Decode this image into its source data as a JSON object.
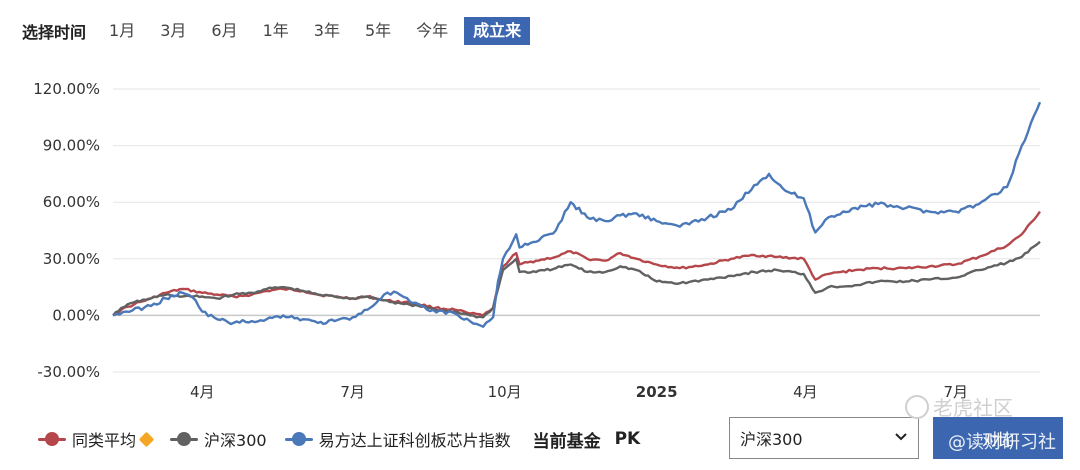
{
  "toolbar": {
    "label": "选择时间",
    "ranges": [
      "1月",
      "3月",
      "6月",
      "1年",
      "3年",
      "5年",
      "今年",
      "成立来"
    ],
    "active_index": 7
  },
  "chart_data": {
    "type": "line",
    "x_range": [
      "2024-02-07",
      "2025-08-21"
    ],
    "ylim": [
      -30,
      120
    ],
    "y_ticks": [
      -30,
      0,
      30,
      60,
      90,
      120
    ],
    "y_tick_labels": [
      "-30.00%",
      "0.00%",
      "30.00%",
      "60.00%",
      "90.00%",
      "120.00%"
    ],
    "x_ticks": [
      {
        "date": "2024-04-01",
        "label": "4月",
        "bold": false
      },
      {
        "date": "2024-07-01",
        "label": "7月",
        "bold": false
      },
      {
        "date": "2024-10-01",
        "label": "10月",
        "bold": false
      },
      {
        "date": "2025-01-01",
        "label": "2025",
        "bold": true
      },
      {
        "date": "2025-04-01",
        "label": "4月",
        "bold": false
      },
      {
        "date": "2025-07-01",
        "label": "7月",
        "bold": false
      }
    ],
    "grid": true,
    "legend_position": "bottom",
    "series": [
      {
        "name": "同类平均",
        "color": "#b5474b",
        "points": [
          [
            "2024-02-07",
            0
          ],
          [
            "2024-02-12",
            3
          ],
          [
            "2024-02-20",
            6
          ],
          [
            "2024-03-01",
            9
          ],
          [
            "2024-03-10",
            12
          ],
          [
            "2024-03-20",
            14
          ],
          [
            "2024-04-01",
            12
          ],
          [
            "2024-04-10",
            11
          ],
          [
            "2024-04-20",
            10
          ],
          [
            "2024-05-01",
            11
          ],
          [
            "2024-05-10",
            13
          ],
          [
            "2024-05-20",
            14
          ],
          [
            "2024-06-01",
            13
          ],
          [
            "2024-06-10",
            11
          ],
          [
            "2024-06-20",
            10
          ],
          [
            "2024-07-01",
            9
          ],
          [
            "2024-07-10",
            10
          ],
          [
            "2024-07-20",
            8
          ],
          [
            "2024-08-01",
            7
          ],
          [
            "2024-08-10",
            6
          ],
          [
            "2024-08-20",
            4
          ],
          [
            "2024-09-01",
            3
          ],
          [
            "2024-09-10",
            1
          ],
          [
            "2024-09-18",
            0
          ],
          [
            "2024-09-24",
            4
          ],
          [
            "2024-09-27",
            15
          ],
          [
            "2024-09-30",
            26
          ],
          [
            "2024-10-08",
            33
          ],
          [
            "2024-10-10",
            27
          ],
          [
            "2024-10-20",
            29
          ],
          [
            "2024-11-01",
            31
          ],
          [
            "2024-11-10",
            34
          ],
          [
            "2024-11-20",
            30
          ],
          [
            "2024-12-01",
            29
          ],
          [
            "2024-12-10",
            33
          ],
          [
            "2024-12-20",
            30
          ],
          [
            "2025-01-01",
            27
          ],
          [
            "2025-01-15",
            25
          ],
          [
            "2025-02-01",
            27
          ],
          [
            "2025-02-15",
            30
          ],
          [
            "2025-03-01",
            32
          ],
          [
            "2025-03-15",
            31
          ],
          [
            "2025-03-31",
            30
          ],
          [
            "2025-04-07",
            19
          ],
          [
            "2025-04-15",
            22
          ],
          [
            "2025-05-01",
            24
          ],
          [
            "2025-05-15",
            25
          ],
          [
            "2025-06-01",
            25
          ],
          [
            "2025-06-15",
            26
          ],
          [
            "2025-07-01",
            27
          ],
          [
            "2025-07-15",
            31
          ],
          [
            "2025-08-01",
            37
          ],
          [
            "2025-08-10",
            43
          ],
          [
            "2025-08-21",
            55
          ]
        ]
      },
      {
        "name": "沪深300",
        "color": "#616161",
        "points": [
          [
            "2024-02-07",
            0
          ],
          [
            "2024-02-12",
            4
          ],
          [
            "2024-02-20",
            7
          ],
          [
            "2024-03-01",
            9
          ],
          [
            "2024-03-10",
            11
          ],
          [
            "2024-03-20",
            10
          ],
          [
            "2024-04-01",
            10
          ],
          [
            "2024-04-10",
            9
          ],
          [
            "2024-04-20",
            11
          ],
          [
            "2024-05-01",
            12
          ],
          [
            "2024-05-10",
            14
          ],
          [
            "2024-05-20",
            15
          ],
          [
            "2024-06-01",
            13
          ],
          [
            "2024-06-10",
            11
          ],
          [
            "2024-06-20",
            10
          ],
          [
            "2024-07-01",
            9
          ],
          [
            "2024-07-10",
            10
          ],
          [
            "2024-07-20",
            8
          ],
          [
            "2024-08-01",
            6
          ],
          [
            "2024-08-10",
            5
          ],
          [
            "2024-08-20",
            3
          ],
          [
            "2024-09-01",
            2
          ],
          [
            "2024-09-10",
            0
          ],
          [
            "2024-09-18",
            -1
          ],
          [
            "2024-09-24",
            4
          ],
          [
            "2024-09-27",
            14
          ],
          [
            "2024-09-30",
            24
          ],
          [
            "2024-10-08",
            30
          ],
          [
            "2024-10-10",
            23
          ],
          [
            "2024-10-20",
            23
          ],
          [
            "2024-11-01",
            25
          ],
          [
            "2024-11-10",
            27
          ],
          [
            "2024-11-20",
            23
          ],
          [
            "2024-12-01",
            23
          ],
          [
            "2024-12-10",
            26
          ],
          [
            "2024-12-20",
            24
          ],
          [
            "2025-01-01",
            18
          ],
          [
            "2025-01-15",
            17
          ],
          [
            "2025-02-01",
            19
          ],
          [
            "2025-02-15",
            21
          ],
          [
            "2025-03-01",
            23
          ],
          [
            "2025-03-15",
            24
          ],
          [
            "2025-03-31",
            22
          ],
          [
            "2025-04-07",
            12
          ],
          [
            "2025-04-15",
            15
          ],
          [
            "2025-05-01",
            16
          ],
          [
            "2025-05-15",
            18
          ],
          [
            "2025-06-01",
            18
          ],
          [
            "2025-06-15",
            19
          ],
          [
            "2025-07-01",
            20
          ],
          [
            "2025-07-15",
            24
          ],
          [
            "2025-08-01",
            28
          ],
          [
            "2025-08-10",
            31
          ],
          [
            "2025-08-21",
            39
          ]
        ]
      },
      {
        "name": "易方达上证科创板芯片指数",
        "color": "#4a78b8",
        "points": [
          [
            "2024-02-07",
            0
          ],
          [
            "2024-02-15",
            2
          ],
          [
            "2024-03-01",
            5
          ],
          [
            "2024-03-10",
            9
          ],
          [
            "2024-03-20",
            12
          ],
          [
            "2024-03-28",
            8
          ],
          [
            "2024-04-01",
            2
          ],
          [
            "2024-04-10",
            -2
          ],
          [
            "2024-04-20",
            -4
          ],
          [
            "2024-05-01",
            -3
          ],
          [
            "2024-05-10",
            -2
          ],
          [
            "2024-05-20",
            0
          ],
          [
            "2024-06-01",
            -2
          ],
          [
            "2024-06-10",
            -4
          ],
          [
            "2024-06-20",
            -3
          ],
          [
            "2024-07-01",
            -1
          ],
          [
            "2024-07-10",
            3
          ],
          [
            "2024-07-20",
            11
          ],
          [
            "2024-07-28",
            12
          ],
          [
            "2024-08-05",
            7
          ],
          [
            "2024-08-15",
            3
          ],
          [
            "2024-09-01",
            1
          ],
          [
            "2024-09-10",
            -3
          ],
          [
            "2024-09-18",
            -6
          ],
          [
            "2024-09-24",
            -1
          ],
          [
            "2024-09-27",
            18
          ],
          [
            "2024-09-30",
            30
          ],
          [
            "2024-10-08",
            43
          ],
          [
            "2024-10-10",
            36
          ],
          [
            "2024-10-20",
            39
          ],
          [
            "2024-11-01",
            45
          ],
          [
            "2024-11-10",
            60
          ],
          [
            "2024-11-20",
            52
          ],
          [
            "2024-12-01",
            50
          ],
          [
            "2024-12-10",
            53
          ],
          [
            "2024-12-20",
            54
          ],
          [
            "2025-01-01",
            50
          ],
          [
            "2025-01-15",
            47
          ],
          [
            "2025-02-01",
            52
          ],
          [
            "2025-02-15",
            56
          ],
          [
            "2025-03-01",
            69
          ],
          [
            "2025-03-10",
            75
          ],
          [
            "2025-03-20",
            66
          ],
          [
            "2025-03-31",
            62
          ],
          [
            "2025-04-07",
            44
          ],
          [
            "2025-04-15",
            52
          ],
          [
            "2025-05-01",
            57
          ],
          [
            "2025-05-15",
            59
          ],
          [
            "2025-06-01",
            57
          ],
          [
            "2025-06-15",
            55
          ],
          [
            "2025-07-01",
            55
          ],
          [
            "2025-07-15",
            59
          ],
          [
            "2025-08-01",
            68
          ],
          [
            "2025-08-10",
            90
          ],
          [
            "2025-08-21",
            113
          ]
        ]
      }
    ]
  },
  "legend": {
    "items": [
      {
        "label": "同类平均",
        "color": "#b5474b",
        "badge": "diamond-icon"
      },
      {
        "label": "沪深300",
        "color": "#616161"
      },
      {
        "label": "易方达上证科创板芯片指数",
        "color": "#4a78b8"
      }
    ]
  },
  "compare": {
    "current_label": "当前基金",
    "pk_label": "PK",
    "selected": "沪深300",
    "submit_label": "对比"
  },
  "watermarks": {
    "top": "老虎社区",
    "bottom": "@读财研习社"
  }
}
